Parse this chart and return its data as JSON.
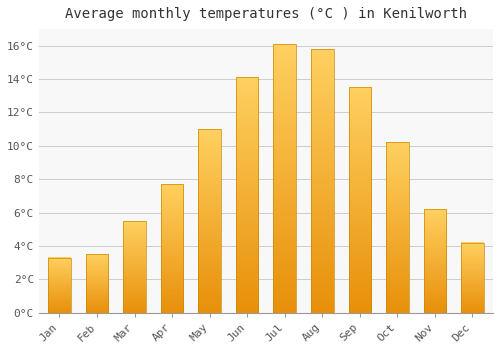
{
  "title": "Average monthly temperatures (°C ) in Kenilworth",
  "months": [
    "Jan",
    "Feb",
    "Mar",
    "Apr",
    "May",
    "Jun",
    "Jul",
    "Aug",
    "Sep",
    "Oct",
    "Nov",
    "Dec"
  ],
  "temperatures": [
    3.3,
    3.5,
    5.5,
    7.7,
    11.0,
    14.1,
    16.1,
    15.8,
    13.5,
    10.2,
    6.2,
    4.2
  ],
  "bar_color": "#FFA500",
  "bar_color_light": "#FFD050",
  "background_color": "#FFFFFF",
  "chart_bg_color": "#F8F8F8",
  "grid_color": "#CCCCCC",
  "ylim": [
    0,
    17
  ],
  "yticks": [
    0,
    2,
    4,
    6,
    8,
    10,
    12,
    14,
    16
  ],
  "title_fontsize": 10,
  "tick_fontsize": 8,
  "font_family": "monospace"
}
